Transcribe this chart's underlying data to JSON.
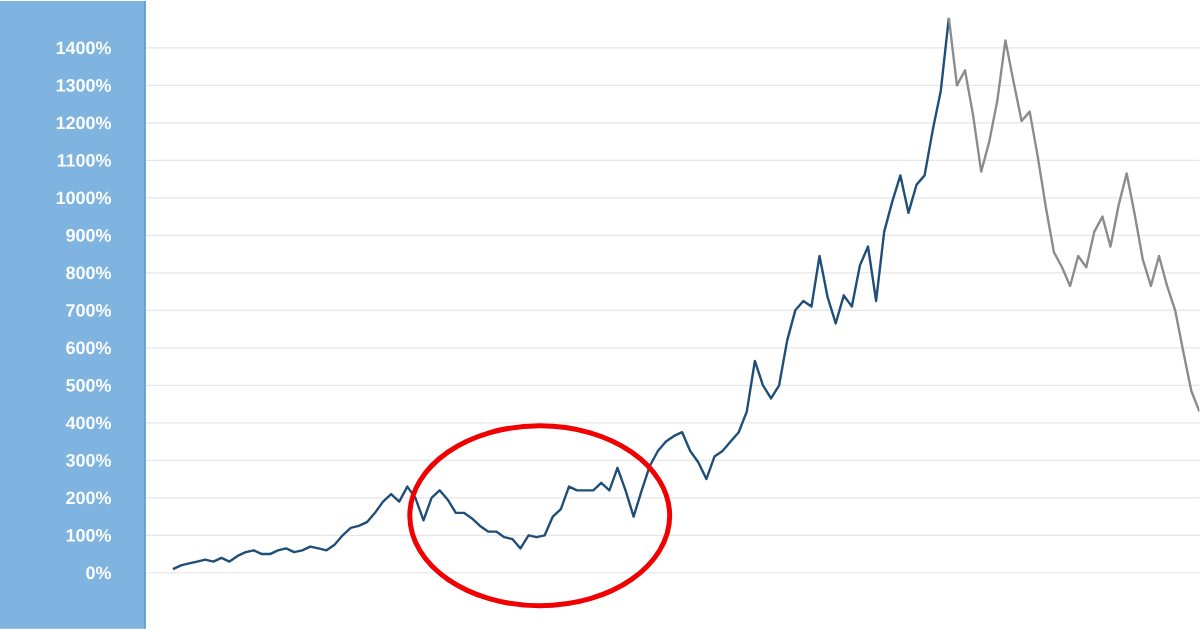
{
  "chart_data": {
    "type": "line",
    "categories": [
      null,
      null,
      null,
      null,
      null,
      null,
      null,
      null,
      null,
      null,
      null,
      null,
      null,
      null,
      null,
      null,
      null,
      null,
      null,
      null,
      null,
      null,
      null,
      null,
      null,
      null,
      null,
      null,
      null,
      null,
      null,
      null,
      null,
      null,
      null,
      null,
      null,
      null,
      null,
      null,
      null,
      null,
      null,
      null,
      null,
      null,
      null,
      null,
      null,
      null,
      null,
      null,
      null,
      null,
      null,
      null,
      null,
      null,
      null,
      null,
      null,
      null,
      null,
      null,
      null,
      null,
      null,
      null,
      null,
      null,
      null,
      null,
      null,
      null,
      null,
      null,
      null,
      null,
      null,
      null,
      null,
      null,
      null,
      null,
      null,
      null,
      null,
      null,
      null,
      null,
      null,
      null,
      null,
      null,
      null,
      null,
      null,
      null,
      null,
      null,
      null,
      null,
      null,
      null,
      null,
      null,
      null,
      null,
      null,
      null,
      null,
      null,
      null,
      null,
      null,
      null,
      null,
      null,
      null,
      null,
      null,
      null,
      null,
      null,
      null,
      null,
      null,
      null
    ],
    "series": [
      {
        "color": "#1f4e79",
        "values": [
          10,
          20,
          25,
          30,
          35,
          30,
          40,
          30,
          45,
          55,
          60,
          50,
          50,
          60,
          65,
          55,
          60,
          70,
          65,
          60,
          75,
          100,
          120,
          125,
          135,
          160,
          190,
          210,
          190,
          230,
          200,
          140,
          200,
          220,
          195,
          160,
          160,
          145,
          125,
          110,
          110,
          95,
          90,
          65,
          100,
          95,
          100,
          150,
          170,
          230,
          220,
          220,
          220,
          240,
          220,
          280,
          220,
          150,
          220,
          285,
          325,
          350,
          365,
          375,
          325,
          295,
          250,
          310,
          325,
          350,
          375,
          430,
          565,
          500,
          465,
          500,
          620,
          700,
          725,
          710,
          845,
          735,
          665,
          740,
          710,
          820,
          870,
          725,
          910,
          990,
          1060,
          960,
          1035,
          1060,
          1180,
          1285,
          1480,
          null,
          null,
          null,
          null,
          null,
          null,
          null,
          null,
          null,
          null,
          null,
          null,
          null,
          null,
          null,
          null,
          null,
          null,
          null,
          null,
          null,
          null,
          null,
          null,
          null,
          null,
          null,
          null,
          null,
          null,
          null
        ]
      },
      {
        "color": "#8c8c8c",
        "values": [
          null,
          null,
          null,
          null,
          null,
          null,
          null,
          null,
          null,
          null,
          null,
          null,
          null,
          null,
          null,
          null,
          null,
          null,
          null,
          null,
          null,
          null,
          null,
          null,
          null,
          null,
          null,
          null,
          null,
          null,
          null,
          null,
          null,
          null,
          null,
          null,
          null,
          null,
          null,
          null,
          null,
          null,
          null,
          null,
          null,
          null,
          null,
          null,
          null,
          null,
          null,
          null,
          null,
          null,
          null,
          null,
          null,
          null,
          null,
          null,
          null,
          null,
          null,
          null,
          null,
          null,
          null,
          null,
          null,
          null,
          null,
          null,
          null,
          null,
          null,
          null,
          null,
          null,
          null,
          null,
          null,
          null,
          null,
          null,
          null,
          null,
          null,
          null,
          null,
          null,
          null,
          null,
          null,
          null,
          null,
          null,
          1480,
          1300,
          1340,
          1220,
          1070,
          1150,
          1260,
          1420,
          1310,
          1205,
          1230,
          1110,
          975,
          855,
          815,
          765,
          845,
          815,
          910,
          950,
          870,
          980,
          1065,
          955,
          835,
          765,
          845,
          765,
          700,
          590,
          485,
          430
        ]
      }
    ],
    "ylim": [
      -149,
      1525
    ],
    "yticks": [
      {
        "value": 0,
        "label": "0%"
      },
      {
        "value": 100,
        "label": "100%"
      },
      {
        "value": 200,
        "label": "200%"
      },
      {
        "value": 300,
        "label": "300%"
      },
      {
        "value": 400,
        "label": "400%"
      },
      {
        "value": 500,
        "label": "500%"
      },
      {
        "value": 600,
        "label": "600%"
      },
      {
        "value": 700,
        "label": "700%"
      },
      {
        "value": 800,
        "label": "800%"
      },
      {
        "value": 900,
        "label": "900%"
      },
      {
        "value": 1000,
        "label": "1000%"
      },
      {
        "value": 1100,
        "label": "1100%"
      },
      {
        "value": 1200,
        "label": "1200%"
      },
      {
        "value": 1300,
        "label": "1300%"
      },
      {
        "value": 1400,
        "label": "1400%"
      }
    ],
    "grid": "y"
  }
}
